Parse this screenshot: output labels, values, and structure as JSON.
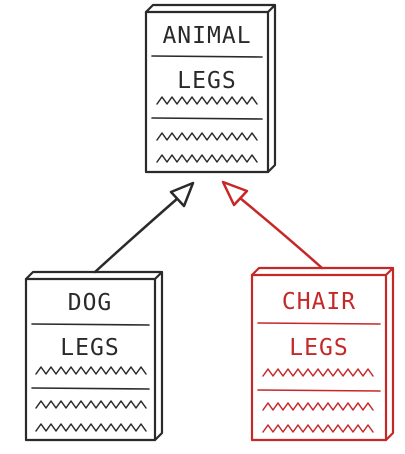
{
  "diagram": {
    "boxes": [
      {
        "id": "animal",
        "title": "ANIMAL",
        "field": "LEGS",
        "color": "#2a2a2a"
      },
      {
        "id": "dog",
        "title": "DOG",
        "field": "LEGS",
        "color": "#2a2a2a"
      },
      {
        "id": "chair",
        "title": "CHAIR",
        "field": "LEGS",
        "color": "#c62828"
      }
    ],
    "relations": [
      {
        "from": "dog",
        "to": "animal",
        "type": "inheritance",
        "color": "#2a2a2a"
      },
      {
        "from": "chair",
        "to": "animal",
        "type": "inheritance",
        "color": "#c62828"
      }
    ]
  }
}
